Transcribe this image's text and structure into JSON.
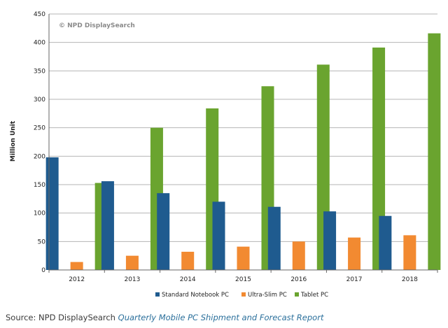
{
  "watermark": "© NPD DisplaySearch",
  "caption": {
    "source_prefix": "Source: NPD DisplaySearch",
    "report_title": "Quarterly Mobile PC Shipment and Forecast Report"
  },
  "colors": {
    "standard_notebook": "#1f5b8f",
    "ultra_slim": "#f28a31",
    "tablet": "#6aa42f",
    "grid": "#b5b5b5"
  },
  "chart_data": {
    "type": "bar",
    "categories": [
      "2012",
      "2013",
      "2014",
      "2015",
      "2016",
      "2017",
      "2018"
    ],
    "series": [
      {
        "name": "Standard Notebook PC",
        "values": [
          198,
          156,
          135,
          120,
          111,
          103,
          95
        ]
      },
      {
        "name": "Ultra-Slim PC",
        "values": [
          14,
          25,
          32,
          41,
          50,
          57,
          61
        ]
      },
      {
        "name": "Tablet PC",
        "values": [
          153,
          250,
          284,
          323,
          361,
          391,
          416
        ]
      }
    ],
    "ylabel": "Million Unit",
    "xlabel": "",
    "ylim": [
      0,
      450
    ],
    "yticks": [
      0,
      50,
      100,
      150,
      200,
      250,
      300,
      350,
      400,
      450
    ],
    "grid": true,
    "legend_position": "bottom"
  }
}
